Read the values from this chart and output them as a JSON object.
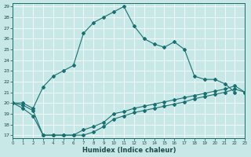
{
  "xlabel": "Humidex (Indice chaleur)",
  "background_color": "#c8e8e8",
  "line_color": "#1a7070",
  "grid_color": "#ffffff",
  "ylim": [
    17,
    29
  ],
  "xlim": [
    0,
    23
  ],
  "yticks": [
    17,
    18,
    19,
    20,
    21,
    22,
    23,
    24,
    25,
    26,
    27,
    28,
    29
  ],
  "xticks": [
    0,
    1,
    2,
    3,
    4,
    5,
    6,
    7,
    8,
    9,
    10,
    11,
    12,
    13,
    14,
    15,
    16,
    17,
    18,
    19,
    20,
    21,
    22,
    23
  ],
  "main_x": [
    0,
    1,
    2,
    3,
    4,
    5,
    6,
    7,
    8,
    9,
    10,
    11,
    12,
    13,
    14,
    15,
    16,
    17,
    18,
    19,
    20,
    21,
    22
  ],
  "main_y": [
    20.0,
    20.0,
    19.5,
    21.5,
    22.5,
    23.0,
    23.5,
    26.5,
    27.5,
    28.0,
    28.5,
    29.0,
    27.2,
    26.0,
    25.5,
    25.2,
    25.7,
    25.0,
    22.5,
    22.2,
    22.2,
    21.8,
    21.0
  ],
  "low1_x": [
    0,
    1,
    2,
    3,
    4,
    5,
    6,
    7,
    8,
    9,
    10,
    11,
    12,
    13,
    14,
    15,
    16,
    17,
    18,
    19,
    20,
    21,
    22,
    23
  ],
  "low1_y": [
    20.0,
    19.8,
    19.3,
    17.0,
    17.0,
    17.0,
    17.0,
    17.5,
    17.8,
    18.2,
    19.0,
    19.2,
    19.5,
    19.7,
    19.9,
    20.1,
    20.3,
    20.5,
    20.7,
    20.9,
    21.1,
    21.3,
    21.6,
    21.0
  ],
  "low2_x": [
    0,
    1,
    2,
    3,
    4,
    5,
    6,
    7,
    8,
    9,
    10,
    11,
    12,
    13,
    14,
    15,
    16,
    17,
    18,
    19,
    20,
    21,
    22,
    23
  ],
  "low2_y": [
    20.0,
    19.5,
    18.8,
    17.0,
    17.0,
    17.0,
    17.0,
    17.0,
    17.3,
    17.8,
    18.5,
    18.8,
    19.1,
    19.3,
    19.5,
    19.7,
    19.9,
    20.1,
    20.4,
    20.6,
    20.8,
    21.0,
    21.3,
    21.0
  ]
}
